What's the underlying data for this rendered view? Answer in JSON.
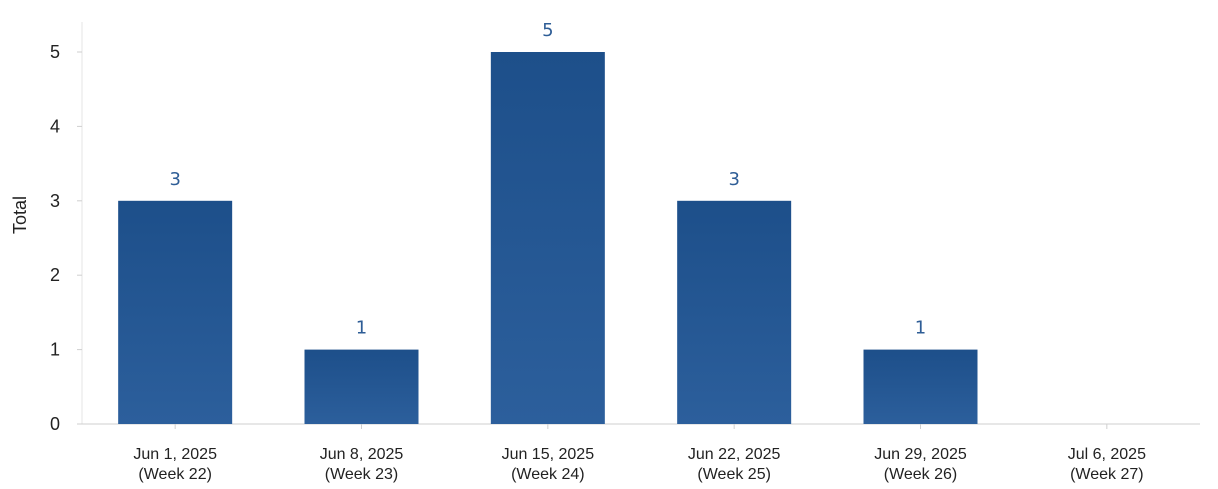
{
  "chart_data": {
    "type": "bar",
    "title": "",
    "xlabel": "",
    "ylabel": "Total",
    "ylim": [
      0,
      5
    ],
    "yticks": [
      0,
      1,
      2,
      3,
      4,
      5
    ],
    "grid": false,
    "legend": "none",
    "categories": [
      [
        "Jun 1, 2025",
        "(Week 22)"
      ],
      [
        "Jun 8, 2025",
        "(Week 23)"
      ],
      [
        "Jun 15, 2025",
        "(Week 24)"
      ],
      [
        "Jun 22, 2025",
        "(Week 25)"
      ],
      [
        "Jun 29, 2025",
        "(Week 26)"
      ],
      [
        "Jul 6, 2025",
        "(Week 27)"
      ]
    ],
    "values": [
      3,
      1,
      5,
      3,
      1,
      0
    ],
    "data_labels": [
      "3",
      "1",
      "5",
      "3",
      "1",
      ""
    ],
    "colors": {
      "bar_top": "#1d4f8a",
      "bar_bottom": "#2c5f9c",
      "data_label": "#2e5d96",
      "axis": "#cfcfcf"
    }
  }
}
